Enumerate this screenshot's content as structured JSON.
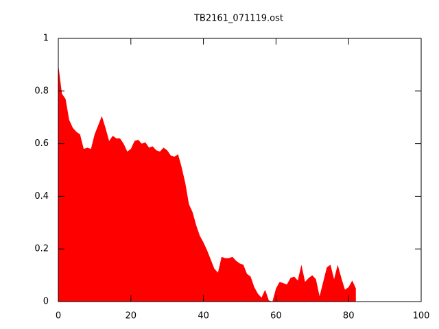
{
  "chart_data": {
    "type": "area",
    "title": "TB2161_071119.ost",
    "color": "#ff0000",
    "x": [
      0,
      1,
      2,
      3,
      4,
      5,
      6,
      7,
      8,
      9,
      10,
      11,
      12,
      13,
      14,
      15,
      16,
      17,
      18,
      19,
      20,
      21,
      22,
      23,
      24,
      25,
      26,
      27,
      28,
      29,
      30,
      31,
      32,
      33,
      34,
      35,
      36,
      37,
      38,
      39,
      40,
      41,
      42,
      43,
      44,
      45,
      46,
      47,
      48,
      49,
      50,
      51,
      52,
      53,
      54,
      55,
      56,
      57,
      58,
      59,
      60,
      61,
      62,
      63,
      64,
      65,
      66,
      67,
      68,
      69,
      70,
      71,
      72,
      73,
      74,
      75,
      76,
      77,
      78,
      79,
      80,
      81,
      82
    ],
    "values": [
      0.9,
      0.79,
      0.77,
      0.69,
      0.66,
      0.645,
      0.635,
      0.58,
      0.585,
      0.58,
      0.635,
      0.67,
      0.705,
      0.66,
      0.61,
      0.63,
      0.62,
      0.62,
      0.6,
      0.57,
      0.58,
      0.61,
      0.615,
      0.6,
      0.605,
      0.585,
      0.59,
      0.575,
      0.57,
      0.585,
      0.575,
      0.555,
      0.55,
      0.56,
      0.51,
      0.45,
      0.37,
      0.34,
      0.29,
      0.25,
      0.225,
      0.195,
      0.16,
      0.125,
      0.11,
      0.17,
      0.165,
      0.165,
      0.17,
      0.155,
      0.145,
      0.14,
      0.105,
      0.095,
      0.055,
      0.03,
      0.015,
      0.045,
      0.005,
      0.0,
      0.05,
      0.075,
      0.07,
      0.065,
      0.09,
      0.095,
      0.08,
      0.14,
      0.075,
      0.09,
      0.1,
      0.085,
      0.02,
      0.075,
      0.13,
      0.14,
      0.085,
      0.14,
      0.09,
      0.045,
      0.055,
      0.08,
      0.05
    ],
    "xlim": [
      0,
      100
    ],
    "xticks": [
      0,
      20,
      40,
      60,
      80,
      100
    ],
    "ylim": [
      0,
      1
    ],
    "yticks": [
      0,
      0.2,
      0.4,
      0.6,
      0.8,
      1
    ]
  }
}
